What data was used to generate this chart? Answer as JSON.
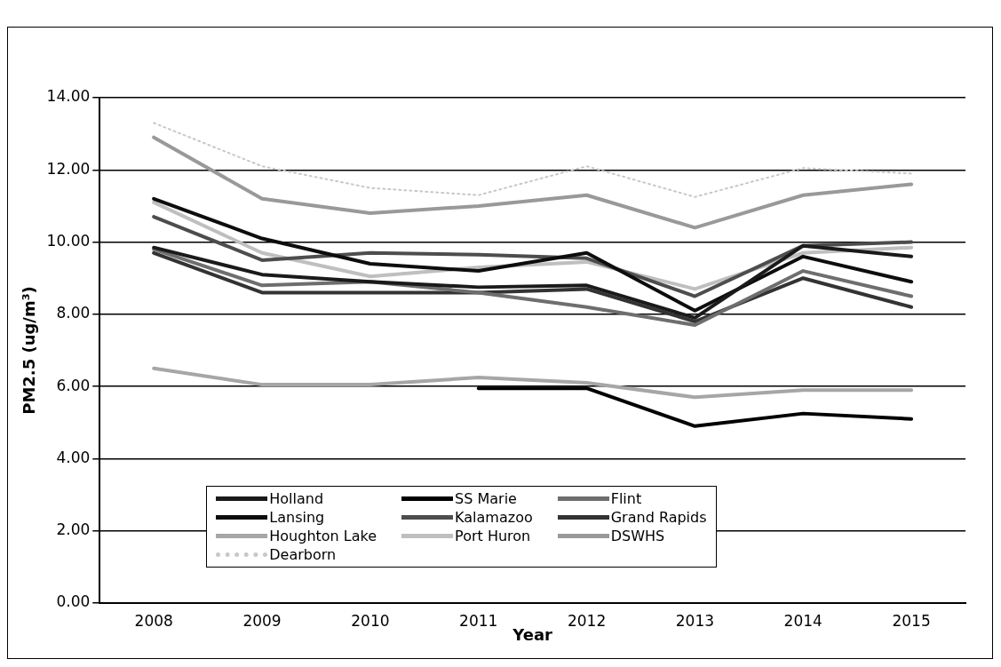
{
  "chart_data": {
    "type": "line",
    "xlabel": "Year",
    "ylabel": "PM2.5 (ug/m³)",
    "categories": [
      "2008",
      "2009",
      "2010",
      "2011",
      "2012",
      "2013",
      "2014",
      "2015"
    ],
    "ylim": [
      0,
      14
    ],
    "yticks": [
      {
        "value": 0,
        "label": "0.00"
      },
      {
        "value": 2,
        "label": "2.00"
      },
      {
        "value": 4,
        "label": "4.00"
      },
      {
        "value": 6,
        "label": "6.00"
      },
      {
        "value": 8,
        "label": "8.00"
      },
      {
        "value": 10,
        "label": "10.00"
      },
      {
        "value": 12,
        "label": "12.00"
      },
      {
        "value": 14,
        "label": "14.00"
      }
    ],
    "grid": "y",
    "legend": "bottom left",
    "marker": "none",
    "line_style": "solid",
    "series": [
      {
        "name": "Holland",
        "color": "#1a1a1a",
        "values": [
          9.85,
          9.1,
          8.9,
          8.75,
          8.8,
          7.9,
          9.9,
          9.6
        ]
      },
      {
        "name": "SS Marie",
        "color": "#000000",
        "values": [
          null,
          null,
          null,
          5.95,
          5.95,
          4.9,
          5.25,
          5.1
        ]
      },
      {
        "name": "Flint",
        "color": "#6e6e6e",
        "values": [
          9.8,
          8.8,
          8.9,
          8.6,
          8.2,
          7.7,
          9.2,
          8.5
        ]
      },
      {
        "name": "Lansing",
        "color": "#0d0d0d",
        "values": [
          11.2,
          10.1,
          9.4,
          9.2,
          9.7,
          8.1,
          9.6,
          8.9
        ]
      },
      {
        "name": "Kalamazoo",
        "color": "#4d4d4d",
        "values": [
          10.7,
          9.5,
          9.7,
          9.65,
          9.55,
          8.5,
          9.9,
          10.0
        ]
      },
      {
        "name": "Grand Rapids",
        "color": "#333333",
        "values": [
          9.7,
          8.6,
          8.6,
          8.6,
          8.7,
          7.8,
          9.0,
          8.2
        ]
      },
      {
        "name": "Houghton Lake",
        "color": "#a6a6a6",
        "values": [
          6.5,
          6.05,
          6.05,
          6.25,
          6.1,
          5.7,
          5.9,
          5.9
        ]
      },
      {
        "name": "Port Huron",
        "color": "#bfbfbf",
        "values": [
          11.1,
          9.7,
          9.05,
          9.3,
          9.45,
          8.7,
          9.7,
          9.85
        ]
      },
      {
        "name": "DSWHS",
        "color": "#999999",
        "values": [
          12.9,
          11.2,
          10.8,
          11.0,
          11.3,
          10.4,
          11.3,
          11.6
        ]
      },
      {
        "name": "Dearborn",
        "color": "#c8c8c8",
        "line_style": "dotted",
        "values": [
          13.3,
          12.1,
          11.5,
          11.3,
          12.1,
          11.25,
          12.05,
          11.9
        ]
      }
    ]
  }
}
